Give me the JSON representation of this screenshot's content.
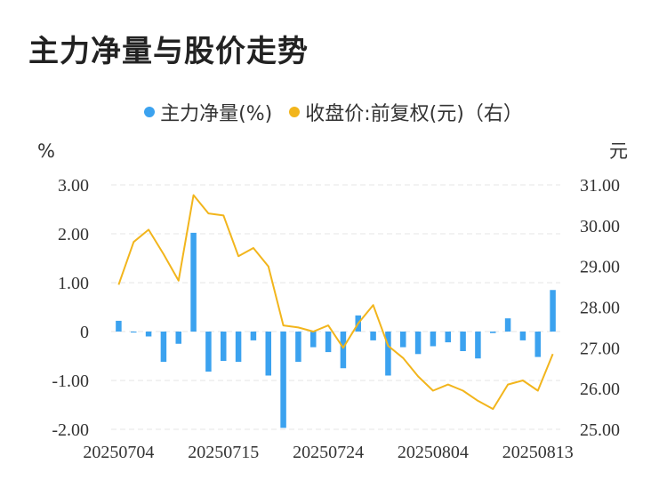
{
  "title": "主力净量与股价走势",
  "legend": {
    "bar_label": "主力净量(%)",
    "line_label": "收盘价:前复权(元)（右）"
  },
  "colors": {
    "bar": "#3ba2ef",
    "line": "#f2b51c",
    "grid": "#e6e6e6"
  },
  "chart_data": {
    "type": "bar+line",
    "left_axis": {
      "unit": "%",
      "ylim": [
        -2,
        3
      ],
      "ticks": [
        "3.00",
        "2.00",
        "1.00",
        "0",
        "-1.00",
        "-2.00"
      ]
    },
    "right_axis": {
      "unit": "元",
      "ylim": [
        25,
        31
      ],
      "ticks": [
        "31.00",
        "30.00",
        "29.00",
        "28.00",
        "27.00",
        "26.00",
        "25.00"
      ]
    },
    "x_tick_labels": [
      "20250704",
      "20250715",
      "20250724",
      "20250804",
      "20250813"
    ],
    "x_tick_index": [
      0,
      7,
      14,
      21,
      28
    ],
    "series": [
      {
        "name": "主力净量(%)",
        "axis": "left",
        "type": "bar",
        "values": [
          0.22,
          -0.02,
          -0.1,
          -0.62,
          -0.25,
          2.02,
          -0.82,
          -0.6,
          -0.62,
          -0.18,
          -0.9,
          -1.97,
          -0.62,
          -0.32,
          -0.42,
          -0.75,
          0.33,
          -0.18,
          -0.9,
          -0.32,
          -0.46,
          -0.3,
          -0.22,
          -0.4,
          -0.55,
          -0.03,
          0.27,
          -0.18,
          -0.52,
          0.85
        ]
      },
      {
        "name": "收盘价:前复权(元)",
        "axis": "right",
        "type": "line",
        "values": [
          28.55,
          29.6,
          29.9,
          29.3,
          28.65,
          30.75,
          30.3,
          30.25,
          29.25,
          29.45,
          29.0,
          27.55,
          27.5,
          27.4,
          27.55,
          27.0,
          27.6,
          28.05,
          27.05,
          26.75,
          26.3,
          25.95,
          26.1,
          25.95,
          25.7,
          25.5,
          26.1,
          26.2,
          25.95,
          26.85
        ]
      }
    ]
  }
}
